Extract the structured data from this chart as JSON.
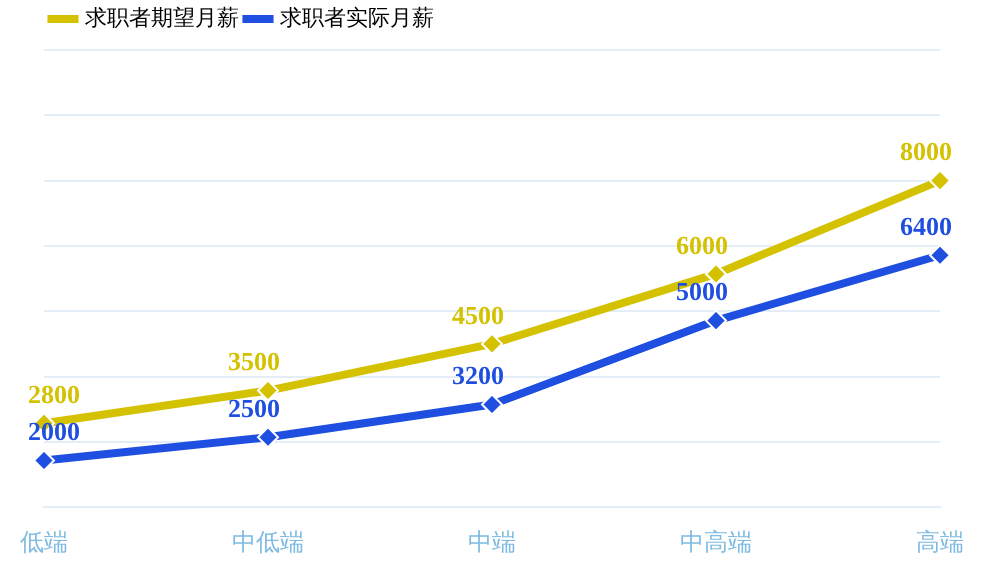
{
  "chart_data": {
    "type": "line",
    "categories": [
      "低端",
      "中低端",
      "中端",
      "中高端",
      "高端"
    ],
    "series": [
      {
        "name": "求职者期望月薪",
        "color": "#d4c200",
        "values": [
          2800,
          3500,
          4500,
          6000,
          8000
        ]
      },
      {
        "name": "求职者实际月薪",
        "color": "#1f4fe0",
        "values": [
          2000,
          2500,
          3200,
          5000,
          6400
        ]
      }
    ],
    "ylim": [
      1000,
      10800
    ],
    "yticks": [
      {
        "value": 1000,
        "label": null
      },
      {
        "value": 2400,
        "label": null
      },
      {
        "value": 3800,
        "label": null
      },
      {
        "value": 5200,
        "label": null
      },
      {
        "value": 6600,
        "label": null
      },
      {
        "value": 8000,
        "label": null
      },
      {
        "value": 9400,
        "label": null
      },
      {
        "value": 10800,
        "label": null
      }
    ],
    "tick_labels": "x",
    "grid": "y",
    "legend": "top left",
    "marker": "diamond",
    "line_style": "solid",
    "data_labels": true
  }
}
